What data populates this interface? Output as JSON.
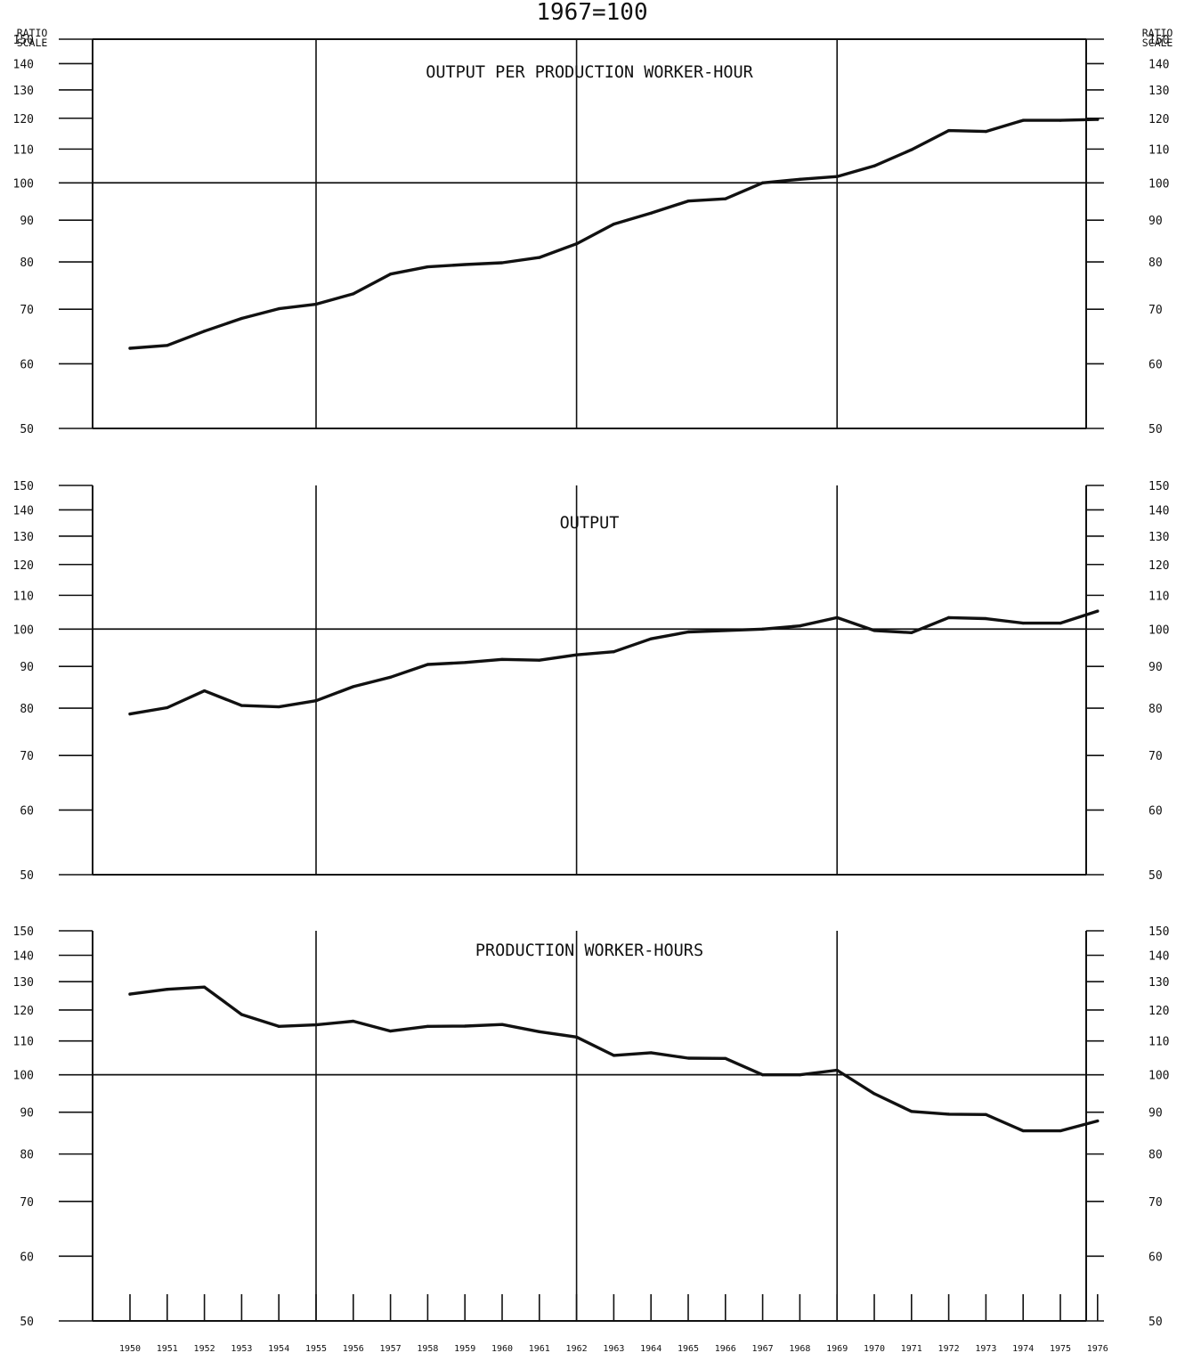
{
  "chart_data": {
    "type": "line",
    "title": "1967=100",
    "scale_label_line1": "RATIO",
    "scale_label_line2": "SCALE",
    "y_scale": "log",
    "ylim": [
      50,
      150
    ],
    "y_ticks": [
      50,
      60,
      70,
      80,
      90,
      100,
      110,
      120,
      130,
      140,
      150
    ],
    "y_tick_labels": [
      "50",
      "60",
      "70",
      "80",
      "90",
      "100",
      "110",
      "120",
      "130",
      "140",
      "150"
    ],
    "x_ticks": [
      1950,
      1951,
      1952,
      1953,
      1954,
      1955,
      1956,
      1957,
      1958,
      1959,
      1960,
      1961,
      1962,
      1963,
      1964,
      1965,
      1966,
      1967,
      1968,
      1969,
      1970,
      1971,
      1972,
      1973,
      1974,
      1975,
      1976
    ],
    "x_tick_labels": [
      "1950",
      "1951",
      "1952",
      "1953",
      "1954",
      "1955",
      "1956",
      "1957",
      "1958",
      "1959",
      "1960",
      "1961",
      "1962",
      "1963",
      "1964",
      "1965",
      "1966",
      "1967",
      "1968",
      "1969",
      "1970",
      "1971",
      "1972",
      "1973",
      "1974",
      "1975",
      "1976"
    ],
    "vertical_gridlines": [
      1955,
      1962,
      1969
    ],
    "reference_value": 100,
    "panels": [
      {
        "label": "OUTPUT PER PRODUCTION WORKER-HOUR",
        "x": [
          1950,
          1951,
          1952,
          1953,
          1954,
          1955,
          1956,
          1957,
          1958,
          1959,
          1960,
          1961,
          1962,
          1963,
          1964,
          1965,
          1966,
          1967,
          1968,
          1969,
          1970,
          1971,
          1972,
          1973,
          1974,
          1975,
          1976
        ],
        "values": [
          62.7,
          63.2,
          65.8,
          68.2,
          70.1,
          71.0,
          73.1,
          77.3,
          78.9,
          79.4,
          79.8,
          81.0,
          84.2,
          89.0,
          91.8,
          95.0,
          95.6,
          100.0,
          101.0,
          101.8,
          104.9,
          109.8,
          115.9,
          115.6,
          119.3,
          119.3,
          119.6
        ]
      },
      {
        "label": "OUTPUT",
        "x": [
          1950,
          1951,
          1952,
          1953,
          1954,
          1955,
          1956,
          1957,
          1958,
          1959,
          1960,
          1961,
          1962,
          1963,
          1964,
          1965,
          1966,
          1967,
          1968,
          1969,
          1970,
          1971,
          1972,
          1973,
          1974,
          1975,
          1976
        ],
        "values": [
          78.7,
          80.1,
          84.0,
          80.6,
          80.3,
          81.7,
          85.0,
          87.3,
          90.5,
          91.0,
          91.8,
          91.6,
          93.0,
          93.8,
          97.3,
          99.2,
          99.6,
          100.0,
          100.9,
          103.3,
          99.6,
          99.0,
          103.3,
          103.0,
          101.7,
          101.7,
          105.2
        ]
      },
      {
        "label": "PRODUCTION WORKER-HOURS",
        "x": [
          1950,
          1951,
          1952,
          1953,
          1954,
          1955,
          1956,
          1957,
          1958,
          1959,
          1960,
          1961,
          1962,
          1963,
          1964,
          1965,
          1966,
          1967,
          1968,
          1969,
          1970,
          1971,
          1972,
          1973,
          1974,
          1975,
          1976
        ],
        "values": [
          125.5,
          127.2,
          128.0,
          118.5,
          114.6,
          115.1,
          116.3,
          113.1,
          114.6,
          114.7,
          115.2,
          112.9,
          111.2,
          105.6,
          106.4,
          104.8,
          104.7,
          100.0,
          100.0,
          101.3,
          94.8,
          90.2,
          89.5,
          89.4,
          85.4,
          85.4,
          87.8
        ]
      }
    ]
  }
}
